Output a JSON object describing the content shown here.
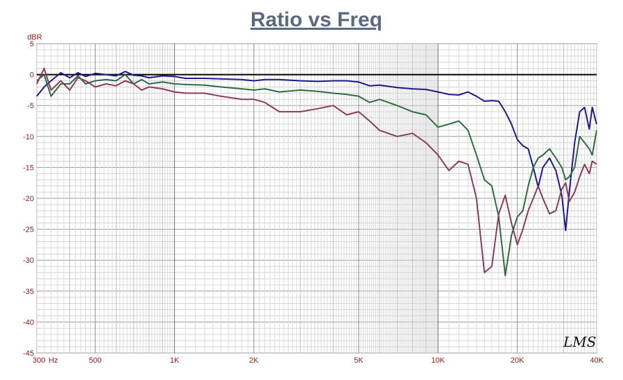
{
  "chart_data": {
    "type": "line",
    "title": "Ratio vs Freq",
    "ylabel": "dBR",
    "x_unit": "Hz",
    "xscale": "log",
    "xlim": [
      300,
      40000
    ],
    "ylim": [
      -45,
      5
    ],
    "grid": true,
    "x_tick_labels": [
      {
        "value": 300,
        "label": "300"
      },
      {
        "value": 500,
        "label": "500"
      },
      {
        "value": 1000,
        "label": "1K"
      },
      {
        "value": 2000,
        "label": "2K"
      },
      {
        "value": 5000,
        "label": "5K"
      },
      {
        "value": 10000,
        "label": "10K"
      },
      {
        "value": 20000,
        "label": "20K"
      },
      {
        "value": 40000,
        "label": "40K"
      }
    ],
    "y_ticks": [
      5,
      0,
      -5,
      -10,
      -15,
      -20,
      -25,
      -30,
      -35,
      -40,
      -45
    ],
    "series": [
      {
        "color": "#1a1a8c",
        "points": [
          [
            300,
            -3.5
          ],
          [
            320,
            -2
          ],
          [
            340,
            -1
          ],
          [
            370,
            0.3
          ],
          [
            400,
            -0.5
          ],
          [
            430,
            0.3
          ],
          [
            460,
            -0.3
          ],
          [
            500,
            0.2
          ],
          [
            550,
            0
          ],
          [
            600,
            -0.2
          ],
          [
            650,
            0.5
          ],
          [
            700,
            -0.1
          ],
          [
            750,
            -0.2
          ],
          [
            800,
            -0.5
          ],
          [
            900,
            -0.2
          ],
          [
            1000,
            -0.3
          ],
          [
            1100,
            -0.6
          ],
          [
            1300,
            -0.6
          ],
          [
            1500,
            -0.7
          ],
          [
            1800,
            -0.8
          ],
          [
            2000,
            -1
          ],
          [
            2200,
            -0.8
          ],
          [
            2500,
            -0.8
          ],
          [
            3000,
            -1
          ],
          [
            3500,
            -1.1
          ],
          [
            4000,
            -1
          ],
          [
            4500,
            -1
          ],
          [
            5000,
            -1.2
          ],
          [
            5500,
            -1.8
          ],
          [
            6000,
            -1.7
          ],
          [
            7000,
            -2.1
          ],
          [
            8000,
            -2.3
          ],
          [
            9000,
            -2.4
          ],
          [
            10000,
            -2.8
          ],
          [
            11000,
            -3.2
          ],
          [
            12000,
            -3.3
          ],
          [
            13000,
            -2.8
          ],
          [
            14000,
            -3.5
          ],
          [
            15000,
            -4.3
          ],
          [
            16000,
            -4.2
          ],
          [
            17000,
            -4.3
          ],
          [
            18000,
            -6
          ],
          [
            19000,
            -8
          ],
          [
            20000,
            -10.5
          ],
          [
            21000,
            -11.5
          ],
          [
            22000,
            -12
          ],
          [
            23000,
            -15
          ],
          [
            24000,
            -18.2
          ],
          [
            25000,
            -15
          ],
          [
            26500,
            -13.5
          ],
          [
            28000,
            -15.5
          ],
          [
            29500,
            -19.5
          ],
          [
            30500,
            -25.2
          ],
          [
            31500,
            -19
          ],
          [
            33000,
            -11
          ],
          [
            34500,
            -6
          ],
          [
            36000,
            -5.3
          ],
          [
            37500,
            -8.8
          ],
          [
            38500,
            -5.3
          ],
          [
            40000,
            -8
          ]
        ]
      },
      {
        "color": "#2e6b40",
        "points": [
          [
            300,
            -1
          ],
          [
            320,
            0
          ],
          [
            340,
            -3.5
          ],
          [
            370,
            -1.5
          ],
          [
            400,
            -1.5
          ],
          [
            430,
            -0.2
          ],
          [
            460,
            -1.5
          ],
          [
            500,
            -1
          ],
          [
            550,
            -0.8
          ],
          [
            600,
            -1
          ],
          [
            650,
            0
          ],
          [
            700,
            -1.5
          ],
          [
            750,
            -0.8
          ],
          [
            800,
            -1.5
          ],
          [
            900,
            -1.2
          ],
          [
            1000,
            -1.5
          ],
          [
            1100,
            -1.6
          ],
          [
            1300,
            -1.7
          ],
          [
            1500,
            -2
          ],
          [
            1800,
            -2.3
          ],
          [
            2000,
            -2.5
          ],
          [
            2200,
            -2.3
          ],
          [
            2500,
            -2.8
          ],
          [
            3000,
            -2.5
          ],
          [
            3500,
            -2.7
          ],
          [
            4000,
            -3
          ],
          [
            4500,
            -3.2
          ],
          [
            5000,
            -3.5
          ],
          [
            5500,
            -4.5
          ],
          [
            6000,
            -4
          ],
          [
            7000,
            -5
          ],
          [
            8000,
            -6
          ],
          [
            9000,
            -6.5
          ],
          [
            10000,
            -8.5
          ],
          [
            11000,
            -8
          ],
          [
            12000,
            -7.5
          ],
          [
            13000,
            -9
          ],
          [
            14000,
            -13
          ],
          [
            15000,
            -17
          ],
          [
            16000,
            -18
          ],
          [
            17000,
            -23
          ],
          [
            18000,
            -32.5
          ],
          [
            19000,
            -26
          ],
          [
            20000,
            -23
          ],
          [
            21000,
            -22
          ],
          [
            22000,
            -18
          ],
          [
            23000,
            -15
          ],
          [
            24000,
            -13.5
          ],
          [
            25000,
            -13
          ],
          [
            26500,
            -12
          ],
          [
            28000,
            -13.5
          ],
          [
            29500,
            -15
          ],
          [
            30500,
            -17
          ],
          [
            31500,
            -16.5
          ],
          [
            33000,
            -15
          ],
          [
            34500,
            -10
          ],
          [
            36000,
            -11
          ],
          [
            37500,
            -12
          ],
          [
            38500,
            -13
          ],
          [
            40000,
            -9
          ]
        ]
      },
      {
        "color": "#8a3a5c",
        "points": [
          [
            300,
            -1.5
          ],
          [
            320,
            1
          ],
          [
            340,
            -2.5
          ],
          [
            370,
            -1
          ],
          [
            400,
            -2.5
          ],
          [
            430,
            -0.5
          ],
          [
            460,
            -1
          ],
          [
            500,
            -2
          ],
          [
            550,
            -1.5
          ],
          [
            600,
            -1.8
          ],
          [
            650,
            -1
          ],
          [
            700,
            -1.5
          ],
          [
            750,
            -2.5
          ],
          [
            800,
            -2
          ],
          [
            900,
            -2.3
          ],
          [
            1000,
            -2.8
          ],
          [
            1100,
            -3
          ],
          [
            1300,
            -3
          ],
          [
            1500,
            -3.5
          ],
          [
            1800,
            -4
          ],
          [
            2000,
            -4
          ],
          [
            2200,
            -4.5
          ],
          [
            2500,
            -6
          ],
          [
            3000,
            -6
          ],
          [
            3500,
            -5.5
          ],
          [
            4000,
            -5
          ],
          [
            4500,
            -6.5
          ],
          [
            5000,
            -6
          ],
          [
            5500,
            -7.5
          ],
          [
            6000,
            -9
          ],
          [
            7000,
            -10
          ],
          [
            8000,
            -9.5
          ],
          [
            9000,
            -11
          ],
          [
            10000,
            -13
          ],
          [
            11000,
            -15.5
          ],
          [
            12000,
            -14
          ],
          [
            13000,
            -14.5
          ],
          [
            14000,
            -20
          ],
          [
            15000,
            -32
          ],
          [
            16000,
            -31
          ],
          [
            17000,
            -22.5
          ],
          [
            18000,
            -19.5
          ],
          [
            19000,
            -24
          ],
          [
            20000,
            -27.5
          ],
          [
            21000,
            -25
          ],
          [
            22000,
            -22
          ],
          [
            23000,
            -20
          ],
          [
            24000,
            -18
          ],
          [
            25000,
            -20
          ],
          [
            26500,
            -22.5
          ],
          [
            28000,
            -22
          ],
          [
            29500,
            -18.5
          ],
          [
            30500,
            -17.5
          ],
          [
            31500,
            -20.5
          ],
          [
            33000,
            -19
          ],
          [
            34500,
            -16.5
          ],
          [
            36000,
            -14.5
          ],
          [
            37500,
            -16
          ],
          [
            38500,
            -14
          ],
          [
            40000,
            -14.5
          ]
        ]
      }
    ]
  },
  "logo_text": "LMS"
}
